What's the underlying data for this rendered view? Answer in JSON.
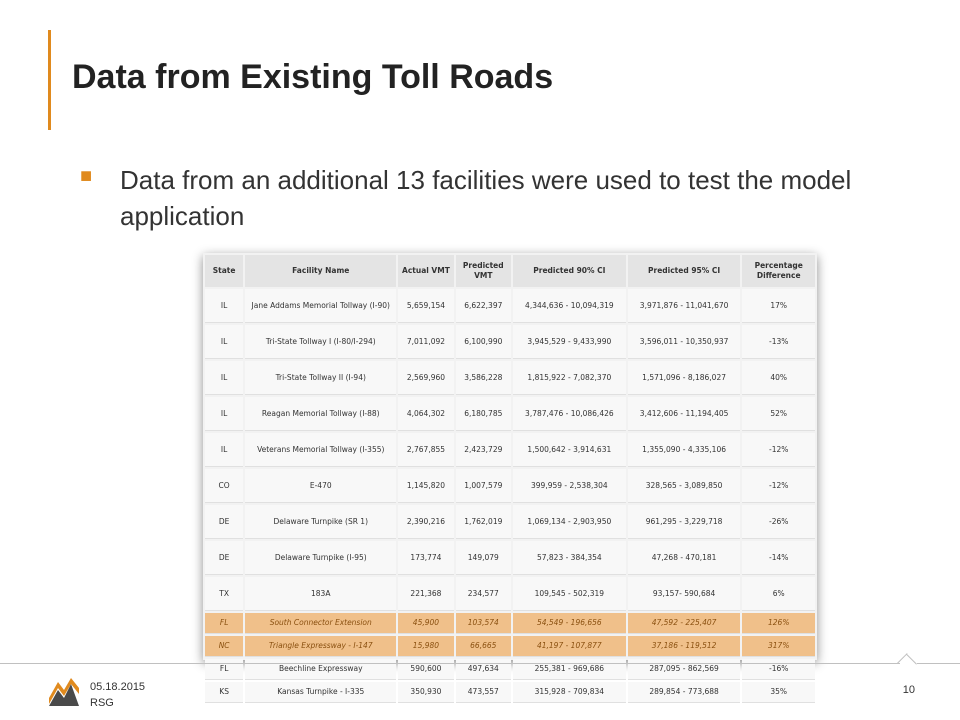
{
  "slide": {
    "title": "Data from Existing Toll Roads",
    "bullet": "Data from an additional 13 facilities were used to test the model application",
    "accent_color": "#e08a1e"
  },
  "table": {
    "headers": [
      "State",
      "Facility Name",
      "Actual VMT",
      "Predicted VMT",
      "Predicted 90% CI",
      "Predicted 95% CI",
      "Percentage Difference"
    ],
    "rows": [
      [
        "IL",
        "Jane Addams Memorial Tollway (I-90)",
        "5,659,154",
        "6,622,397",
        "4,344,636 - 10,094,319",
        "3,971,876 - 11,041,670",
        "17%"
      ],
      [
        "IL",
        "Tri-State Tollway I (I-80/I-294)",
        "7,011,092",
        "6,100,990",
        "3,945,529 - 9,433,990",
        "3,596,011 - 10,350,937",
        "-13%"
      ],
      [
        "IL",
        "Tri-State Tollway II (I-94)",
        "2,569,960",
        "3,586,228",
        "1,815,922 - 7,082,370",
        "1,571,096 - 8,186,027",
        "40%"
      ],
      [
        "IL",
        "Reagan Memorial Tollway (I-88)",
        "4,064,302",
        "6,180,785",
        "3,787,476 - 10,086,426",
        "3,412,606 - 11,194,405",
        "52%"
      ],
      [
        "IL",
        "Veterans Memorial Tollway (I-355)",
        "2,767,855",
        "2,423,729",
        "1,500,642 - 3,914,631",
        "1,355,090 - 4,335,106",
        "-12%"
      ],
      [
        "CO",
        "E-470",
        "1,145,820",
        "1,007,579",
        "399,959 - 2,538,304",
        "328,565 - 3,089,850",
        "-12%"
      ],
      [
        "DE",
        "Delaware Turnpike (SR 1)",
        "2,390,216",
        "1,762,019",
        "1,069,134 - 2,903,950",
        "961,295 - 3,229,718",
        "-26%"
      ],
      [
        "DE",
        "Delaware Turnpike (I-95)",
        "173,774",
        "149,079",
        "57,823 - 384,354",
        "47,268 - 470,181",
        "-14%"
      ],
      [
        "TX",
        "183A",
        "221,368",
        "234,577",
        "109,545 - 502,319",
        "93,157- 590,684",
        "6%"
      ],
      [
        "FL",
        "South Connector Extension",
        "45,900",
        "103,574",
        "54,549 - 196,656",
        "47,592 - 225,407",
        "126%"
      ],
      [
        "NC",
        "Triangle Expressway - I-147",
        "15,980",
        "66,665",
        "41,197 - 107,877",
        "37,186 - 119,512",
        "317%"
      ],
      [
        "FL",
        "Beechline Expressway",
        "590,600",
        "497,634",
        "255,381 - 969,686",
        "287,095 - 862,569",
        "-16%"
      ],
      [
        "KS",
        "Kansas Turnpike - I-335",
        "350,930",
        "473,557",
        "315,928 - 709,834",
        "289,854 - 773,688",
        "35%"
      ]
    ],
    "highlighted_rows": [
      9,
      10
    ],
    "highlight_color": "#f0b060"
  },
  "footer": {
    "date": "05.18.2015",
    "org": "RSG",
    "page_number": "10"
  }
}
